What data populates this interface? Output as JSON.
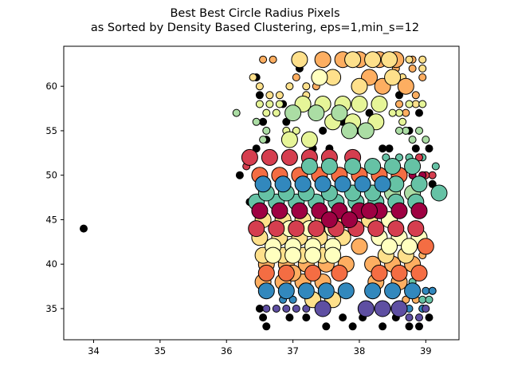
{
  "chart_data": {
    "type": "scatter",
    "title_line1": "Best Best Circle Radius Pixels",
    "title_line2": "as Sorted by Density Based Clustering, eps=1,min_s=12",
    "xlabel": "",
    "ylabel": "",
    "xlim": [
      33.55,
      39.5
    ],
    "ylim": [
      31.5,
      64.5
    ],
    "xticks": [
      34,
      35,
      36,
      37,
      38,
      39
    ],
    "yticks": [
      35,
      40,
      45,
      50,
      55,
      60
    ],
    "grid": false,
    "legend": "none",
    "noise_color": "#000000",
    "edge_color": "#000000",
    "cluster_colors": [
      "#fdae61",
      "#fee08b",
      "#e6f598",
      "#abdda4",
      "#d53e4f",
      "#f46d43",
      "#66c2a5",
      "#3288bd",
      "#9e0142",
      "#5e4fa2",
      "#ffffbf"
    ],
    "noise_points": [
      [
        33.85,
        44
      ],
      [
        36.45,
        61
      ],
      [
        36.5,
        59
      ],
      [
        36.55,
        56
      ],
      [
        36.6,
        54
      ],
      [
        36.2,
        50
      ],
      [
        36.85,
        58
      ],
      [
        36.9,
        56
      ],
      [
        37.1,
        62
      ],
      [
        37.45,
        55
      ],
      [
        37.55,
        53
      ],
      [
        37.75,
        56
      ],
      [
        38.0,
        55
      ],
      [
        38.35,
        53
      ],
      [
        38.6,
        59
      ],
      [
        38.75,
        55
      ],
      [
        38.85,
        53
      ],
      [
        38.9,
        57
      ],
      [
        39.05,
        53
      ],
      [
        39.1,
        49
      ],
      [
        36.5,
        35
      ],
      [
        36.55,
        34
      ],
      [
        36.6,
        33
      ],
      [
        36.95,
        34
      ],
      [
        37.2,
        34
      ],
      [
        37.5,
        33
      ],
      [
        37.75,
        34
      ],
      [
        37.9,
        33
      ],
      [
        38.05,
        34
      ],
      [
        38.35,
        33
      ],
      [
        38.55,
        34
      ],
      [
        38.75,
        33
      ],
      [
        38.9,
        33
      ],
      [
        39.05,
        34
      ],
      [
        36.35,
        47
      ],
      [
        36.45,
        53
      ],
      [
        36.7,
        52
      ],
      [
        37.3,
        53
      ],
      [
        38.15,
        57
      ],
      [
        38.45,
        53
      ],
      [
        38.95,
        35
      ],
      [
        39.1,
        37
      ]
    ],
    "clusters": [
      {
        "color": "#fdae61",
        "points": [
          [
            37.45,
            63
          ],
          [
            37.75,
            63
          ],
          [
            38.0,
            63
          ],
          [
            38.3,
            63
          ],
          [
            38.55,
            63
          ],
          [
            38.15,
            61
          ],
          [
            38.35,
            60
          ],
          [
            38.7,
            60
          ],
          [
            36.6,
            40
          ],
          [
            36.9,
            40
          ],
          [
            37.2,
            40
          ],
          [
            37.5,
            40
          ],
          [
            37.8,
            40
          ],
          [
            38.2,
            40
          ],
          [
            38.5,
            40
          ],
          [
            38.8,
            40
          ],
          [
            36.55,
            38
          ],
          [
            36.85,
            38
          ],
          [
            37.15,
            38
          ],
          [
            37.45,
            38
          ],
          [
            38.25,
            38
          ],
          [
            38.6,
            38
          ],
          [
            37.0,
            39
          ],
          [
            38.0,
            42
          ]
        ],
        "r": 10
      },
      {
        "color": "#fee08b",
        "points": [
          [
            37.1,
            63
          ],
          [
            37.9,
            63
          ],
          [
            38.2,
            63
          ],
          [
            38.45,
            63
          ],
          [
            37.6,
            61
          ],
          [
            38.0,
            60
          ],
          [
            38.5,
            61
          ],
          [
            36.55,
            45
          ],
          [
            36.85,
            45
          ],
          [
            37.15,
            45
          ],
          [
            37.45,
            45
          ],
          [
            37.8,
            45
          ],
          [
            38.15,
            45
          ],
          [
            36.5,
            43
          ],
          [
            36.8,
            43
          ],
          [
            37.1,
            43
          ],
          [
            37.4,
            43
          ],
          [
            37.75,
            43
          ],
          [
            36.55,
            41
          ],
          [
            36.85,
            41
          ],
          [
            37.15,
            41
          ],
          [
            37.45,
            41
          ],
          [
            38.4,
            41
          ],
          [
            38.7,
            41
          ],
          [
            37.3,
            36
          ],
          [
            37.6,
            36
          ]
        ],
        "r": 10
      },
      {
        "color": "#ffffbf",
        "points": [
          [
            37.4,
            61
          ],
          [
            36.95,
            44
          ],
          [
            37.25,
            44
          ],
          [
            37.6,
            44
          ],
          [
            36.7,
            42
          ],
          [
            37.0,
            42
          ],
          [
            37.3,
            42
          ],
          [
            37.6,
            42
          ],
          [
            38.3,
            43
          ],
          [
            38.6,
            43
          ],
          [
            38.9,
            43
          ],
          [
            38.45,
            45
          ],
          [
            36.7,
            41
          ],
          [
            37.0,
            41
          ],
          [
            37.3,
            41
          ],
          [
            37.6,
            41
          ],
          [
            38.45,
            42
          ],
          [
            38.75,
            42
          ]
        ],
        "r": 10
      },
      {
        "color": "#e6f598",
        "points": [
          [
            37.15,
            58
          ],
          [
            37.45,
            58
          ],
          [
            37.75,
            58
          ],
          [
            38.0,
            58
          ],
          [
            38.3,
            58
          ],
          [
            36.95,
            54
          ],
          [
            37.25,
            54
          ],
          [
            37.6,
            56
          ],
          [
            37.9,
            56
          ],
          [
            38.25,
            56
          ]
        ],
        "r": 10
      },
      {
        "color": "#abdda4",
        "points": [
          [
            37.0,
            57
          ],
          [
            37.35,
            57
          ],
          [
            37.7,
            57
          ],
          [
            37.85,
            55
          ],
          [
            38.1,
            55
          ],
          [
            38.5,
            48
          ],
          [
            38.8,
            48
          ]
        ],
        "r": 10
      },
      {
        "color": "#d53e4f",
        "points": [
          [
            36.35,
            52
          ],
          [
            36.65,
            52
          ],
          [
            36.95,
            52
          ],
          [
            37.25,
            52
          ],
          [
            37.55,
            52
          ],
          [
            37.9,
            52
          ],
          [
            36.45,
            44
          ],
          [
            36.75,
            44
          ],
          [
            37.05,
            44
          ],
          [
            37.35,
            44
          ],
          [
            37.65,
            44
          ],
          [
            37.95,
            44
          ],
          [
            38.25,
            44
          ],
          [
            38.55,
            44
          ],
          [
            38.85,
            44
          ]
        ],
        "r": 10
      },
      {
        "color": "#f46d43",
        "points": [
          [
            36.5,
            50
          ],
          [
            36.8,
            50
          ],
          [
            37.1,
            50
          ],
          [
            37.4,
            50
          ],
          [
            37.7,
            50
          ],
          [
            38.0,
            50
          ],
          [
            38.3,
            50
          ],
          [
            38.6,
            50
          ],
          [
            36.6,
            39
          ],
          [
            36.9,
            39
          ],
          [
            37.3,
            39
          ],
          [
            37.7,
            39
          ],
          [
            38.3,
            39
          ],
          [
            38.6,
            39
          ],
          [
            38.9,
            39
          ],
          [
            39.0,
            42
          ]
        ],
        "r": 10
      },
      {
        "color": "#66c2a5",
        "points": [
          [
            36.45,
            47
          ],
          [
            36.75,
            47
          ],
          [
            37.05,
            47
          ],
          [
            37.35,
            47
          ],
          [
            37.65,
            47
          ],
          [
            37.95,
            47
          ],
          [
            38.25,
            47
          ],
          [
            38.55,
            47
          ],
          [
            38.85,
            47
          ],
          [
            36.6,
            48
          ],
          [
            36.9,
            48
          ],
          [
            37.2,
            48
          ],
          [
            37.55,
            48
          ],
          [
            37.9,
            48
          ],
          [
            38.2,
            48
          ],
          [
            38.55,
            49
          ],
          [
            38.9,
            49
          ],
          [
            39.2,
            48
          ],
          [
            37.9,
            51
          ],
          [
            38.2,
            51
          ],
          [
            38.5,
            51
          ],
          [
            38.8,
            51
          ],
          [
            37.55,
            51
          ],
          [
            37.25,
            51
          ]
        ],
        "r": 10
      },
      {
        "color": "#3288bd",
        "points": [
          [
            36.55,
            49
          ],
          [
            36.85,
            49
          ],
          [
            37.15,
            49
          ],
          [
            37.45,
            49
          ],
          [
            37.75,
            49
          ],
          [
            38.05,
            49
          ],
          [
            38.35,
            49
          ],
          [
            36.6,
            37
          ],
          [
            36.9,
            37
          ],
          [
            37.2,
            37
          ],
          [
            37.5,
            37
          ],
          [
            37.8,
            37
          ],
          [
            38.2,
            37
          ],
          [
            38.5,
            37
          ],
          [
            38.8,
            37
          ]
        ],
        "r": 10
      },
      {
        "color": "#9e0142",
        "points": [
          [
            36.5,
            46
          ],
          [
            36.8,
            46
          ],
          [
            37.1,
            46
          ],
          [
            37.4,
            46
          ],
          [
            37.7,
            46
          ],
          [
            38.0,
            46
          ],
          [
            38.3,
            46
          ],
          [
            38.6,
            46
          ],
          [
            38.9,
            46
          ],
          [
            37.55,
            45
          ],
          [
            37.85,
            45
          ],
          [
            38.15,
            46
          ]
        ],
        "r": 10
      },
      {
        "color": "#5e4fa2",
        "points": [
          [
            37.45,
            35
          ],
          [
            38.1,
            35
          ],
          [
            38.35,
            35
          ],
          [
            38.6,
            35
          ]
        ],
        "r": 10
      }
    ],
    "small_points": [
      {
        "color": "#fdae61",
        "points": [
          [
            36.55,
            63
          ],
          [
            36.7,
            63
          ],
          [
            38.55,
            63
          ],
          [
            38.8,
            62
          ],
          [
            38.95,
            61
          ],
          [
            38.85,
            59
          ],
          [
            38.6,
            58
          ],
          [
            38.7,
            57
          ],
          [
            37.05,
            61
          ],
          [
            37.35,
            60
          ],
          [
            38.95,
            41
          ],
          [
            38.95,
            39
          ],
          [
            38.85,
            36
          ],
          [
            38.7,
            36
          ],
          [
            38.55,
            62
          ],
          [
            38.8,
            63
          ]
        ]
      },
      {
        "color": "#fee08b",
        "points": [
          [
            36.4,
            61
          ],
          [
            36.5,
            60
          ],
          [
            36.65,
            59
          ],
          [
            36.8,
            59
          ],
          [
            36.95,
            60
          ],
          [
            37.2,
            60
          ],
          [
            37.2,
            59
          ],
          [
            38.95,
            62
          ],
          [
            38.85,
            58
          ],
          [
            38.75,
            63
          ],
          [
            38.95,
            63
          ],
          [
            38.65,
            61
          ]
        ]
      },
      {
        "color": "#e6f598",
        "points": [
          [
            36.5,
            58
          ],
          [
            36.65,
            58
          ],
          [
            36.8,
            58
          ],
          [
            36.6,
            57
          ],
          [
            36.75,
            57
          ],
          [
            36.9,
            55
          ],
          [
            37.05,
            55
          ],
          [
            38.6,
            57
          ],
          [
            38.75,
            58
          ],
          [
            38.95,
            58
          ],
          [
            38.5,
            57
          ],
          [
            38.65,
            56
          ]
        ]
      },
      {
        "color": "#abdda4",
        "points": [
          [
            36.15,
            57
          ],
          [
            36.45,
            56
          ],
          [
            36.6,
            55
          ],
          [
            38.7,
            55
          ],
          [
            38.9,
            55
          ],
          [
            38.8,
            54
          ],
          [
            39.0,
            54
          ],
          [
            38.6,
            55
          ],
          [
            36.55,
            54
          ]
        ]
      },
      {
        "color": "#66c2a5",
        "points": [
          [
            39.15,
            51
          ],
          [
            38.95,
            52
          ],
          [
            38.75,
            52
          ],
          [
            38.6,
            52
          ],
          [
            38.4,
            52
          ],
          [
            38.95,
            36
          ],
          [
            39.05,
            36
          ],
          [
            38.8,
            38
          ]
        ]
      },
      {
        "color": "#3288bd",
        "points": [
          [
            38.85,
            37
          ],
          [
            39.0,
            37
          ],
          [
            39.1,
            37
          ],
          [
            38.75,
            35
          ],
          [
            38.95,
            35
          ],
          [
            37.0,
            36
          ],
          [
            36.85,
            36
          ]
        ]
      },
      {
        "color": "#5e4fa2",
        "points": [
          [
            36.6,
            35
          ],
          [
            36.75,
            35
          ],
          [
            36.9,
            35
          ],
          [
            37.05,
            35
          ],
          [
            37.2,
            35
          ],
          [
            38.75,
            34
          ],
          [
            38.9,
            34
          ],
          [
            39.0,
            35
          ]
        ]
      },
      {
        "color": "#d53e4f",
        "points": [
          [
            38.9,
            52
          ],
          [
            39.1,
            50
          ],
          [
            39.0,
            50
          ],
          [
            36.3,
            51
          ]
        ]
      },
      {
        "color": "#9e0142",
        "points": [
          [
            38.8,
            50
          ],
          [
            38.95,
            50
          ]
        ]
      }
    ]
  }
}
